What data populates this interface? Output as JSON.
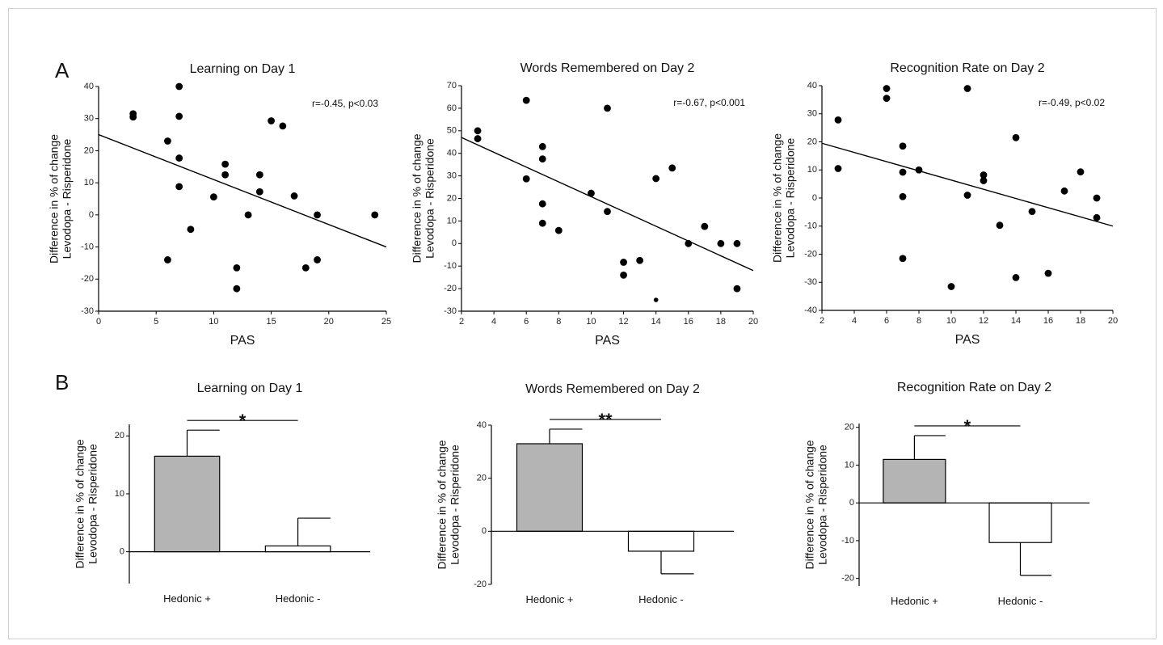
{
  "panels": {
    "A": "A",
    "B": "B"
  },
  "chart_data": [
    {
      "type": "scatter",
      "title": "Learning on Day 1",
      "xlabel": "PAS",
      "ylabel_lines": [
        "Difference in % of change",
        "Levodopa - Risperidone"
      ],
      "xlim": [
        0,
        25
      ],
      "ylim": [
        -30,
        40
      ],
      "xticks": [
        0,
        5,
        10,
        15,
        20,
        25
      ],
      "yticks": [
        -30,
        -20,
        -10,
        0,
        10,
        20,
        30,
        40
      ],
      "annotation": "r=-0.45, p<0.03",
      "trendline": {
        "x": [
          0,
          25
        ],
        "y": [
          25,
          -10
        ]
      },
      "points": [
        {
          "x": 3,
          "y": 31.5
        },
        {
          "x": 3,
          "y": 30.5
        },
        {
          "x": 6,
          "y": 23
        },
        {
          "x": 7,
          "y": 40
        },
        {
          "x": 7,
          "y": 30.7
        },
        {
          "x": 7,
          "y": 17.7
        },
        {
          "x": 7,
          "y": 8.8
        },
        {
          "x": 8,
          "y": -4.5
        },
        {
          "x": 6,
          "y": -14
        },
        {
          "x": 10,
          "y": 5.6
        },
        {
          "x": 11,
          "y": 15.8
        },
        {
          "x": 11,
          "y": 12.5
        },
        {
          "x": 12,
          "y": -16.5
        },
        {
          "x": 12,
          "y": -23
        },
        {
          "x": 13,
          "y": 0
        },
        {
          "x": 14,
          "y": 12.5
        },
        {
          "x": 14,
          "y": 7.2
        },
        {
          "x": 15,
          "y": 29.3
        },
        {
          "x": 16,
          "y": 27.7
        },
        {
          "x": 17,
          "y": 5.9
        },
        {
          "x": 18,
          "y": -16.5
        },
        {
          "x": 19,
          "y": 0
        },
        {
          "x": 19,
          "y": -14
        },
        {
          "x": 24,
          "y": 0
        }
      ]
    },
    {
      "type": "scatter",
      "title": "Words Remembered on Day 2",
      "xlabel": "PAS",
      "ylabel_lines": [
        "Difference in % of change",
        "Levodopa - Risperidone"
      ],
      "xlim": [
        2,
        20
      ],
      "ylim": [
        -30,
        70
      ],
      "xticks": [
        2,
        4,
        6,
        8,
        10,
        12,
        14,
        16,
        18,
        20
      ],
      "yticks": [
        -30,
        -20,
        -10,
        0,
        10,
        20,
        30,
        40,
        50,
        60,
        70
      ],
      "annotation": "r=-0.67, p<0.001",
      "trendline": {
        "x": [
          2,
          20
        ],
        "y": [
          47,
          -12
        ]
      },
      "points": [
        {
          "x": 3,
          "y": 50
        },
        {
          "x": 3,
          "y": 46.5
        },
        {
          "x": 6,
          "y": 63.5
        },
        {
          "x": 6,
          "y": 28.7
        },
        {
          "x": 7,
          "y": 43
        },
        {
          "x": 7,
          "y": 37.5
        },
        {
          "x": 7,
          "y": 17.6
        },
        {
          "x": 7,
          "y": 9
        },
        {
          "x": 8,
          "y": 5.8
        },
        {
          "x": 10,
          "y": 22.3
        },
        {
          "x": 11,
          "y": 60
        },
        {
          "x": 11,
          "y": 14.2
        },
        {
          "x": 12,
          "y": -8.3
        },
        {
          "x": 12,
          "y": -14
        },
        {
          "x": 13,
          "y": -7.5
        },
        {
          "x": 14,
          "y": 28.8
        },
        {
          "x": 14,
          "y": -25,
          "small": true
        },
        {
          "x": 15,
          "y": 33.5
        },
        {
          "x": 16,
          "y": 0
        },
        {
          "x": 17,
          "y": 7.6
        },
        {
          "x": 18,
          "y": 0
        },
        {
          "x": 19,
          "y": 0
        },
        {
          "x": 19,
          "y": -20
        }
      ]
    },
    {
      "type": "scatter",
      "title": "Recognition Rate on Day 2",
      "xlabel": "PAS",
      "ylabel_lines": [
        "Difference in % of change",
        "Levodopa - Risperidone"
      ],
      "xlim": [
        2,
        20
      ],
      "ylim": [
        -40,
        40
      ],
      "xticks": [
        2,
        4,
        6,
        8,
        10,
        12,
        14,
        16,
        18,
        20
      ],
      "yticks": [
        -40,
        -30,
        -20,
        -10,
        0,
        10,
        20,
        30,
        40
      ],
      "annotation": "r=-0.49, p<0.02",
      "trendline": {
        "x": [
          2,
          20
        ],
        "y": [
          19.5,
          -10
        ]
      },
      "points": [
        {
          "x": 3,
          "y": 27.8
        },
        {
          "x": 3,
          "y": 10.5
        },
        {
          "x": 6,
          "y": 39
        },
        {
          "x": 6,
          "y": 35.5
        },
        {
          "x": 7,
          "y": 18.5
        },
        {
          "x": 7,
          "y": 9.2
        },
        {
          "x": 7,
          "y": 0.5
        },
        {
          "x": 7,
          "y": -21.5
        },
        {
          "x": 8,
          "y": 10
        },
        {
          "x": 10,
          "y": -31.5
        },
        {
          "x": 11,
          "y": 39
        },
        {
          "x": 11,
          "y": 1
        },
        {
          "x": 12,
          "y": 8.2
        },
        {
          "x": 12,
          "y": 6.2
        },
        {
          "x": 13,
          "y": -9.7
        },
        {
          "x": 14,
          "y": 21.5
        },
        {
          "x": 14,
          "y": -28.3
        },
        {
          "x": 15,
          "y": -4.8
        },
        {
          "x": 16,
          "y": -26.8
        },
        {
          "x": 17,
          "y": 2.5
        },
        {
          "x": 18,
          "y": 9.3
        },
        {
          "x": 19,
          "y": 0
        },
        {
          "x": 19,
          "y": -7
        }
      ]
    },
    {
      "type": "bar",
      "title": "Learning on Day 1",
      "ylabel_lines": [
        "Difference in % of change",
        "Levodopa - Risperidone"
      ],
      "categories": [
        "Hedonic +",
        "Hedonic -"
      ],
      "values": [
        16.5,
        1
      ],
      "errors": [
        4.5,
        4.8
      ],
      "bar_colors": [
        "#b4b4b4",
        "#ffffff"
      ],
      "ylim": [
        -5.5,
        22
      ],
      "yticks": [
        0,
        10,
        20
      ],
      "significance": "*"
    },
    {
      "type": "bar",
      "title": "Words Remembered on Day 2",
      "ylabel_lines": [
        "Difference in % of change",
        "Levodopa - Risperidone"
      ],
      "categories": [
        "Hedonic +",
        "Hedonic -"
      ],
      "values": [
        33,
        -7.5
      ],
      "errors": [
        5.5,
        8.5
      ],
      "bar_colors": [
        "#b4b4b4",
        "#ffffff"
      ],
      "ylim": [
        -20,
        40
      ],
      "yticks": [
        -20,
        0,
        20,
        40
      ],
      "significance": "**"
    },
    {
      "type": "bar",
      "title": "Recognition Rate on Day 2",
      "ylabel_lines": [
        "Difference in % of change",
        "Levodopa - Risperidone"
      ],
      "categories": [
        "Hedonic +",
        "Hedonic -"
      ],
      "values": [
        11.5,
        -10.5
      ],
      "errors": [
        6.3,
        8.7
      ],
      "bar_colors": [
        "#b4b4b4",
        "#ffffff"
      ],
      "ylim": [
        -22,
        21
      ],
      "yticks": [
        -20,
        -10,
        0,
        10,
        20
      ],
      "significance": "*"
    }
  ]
}
